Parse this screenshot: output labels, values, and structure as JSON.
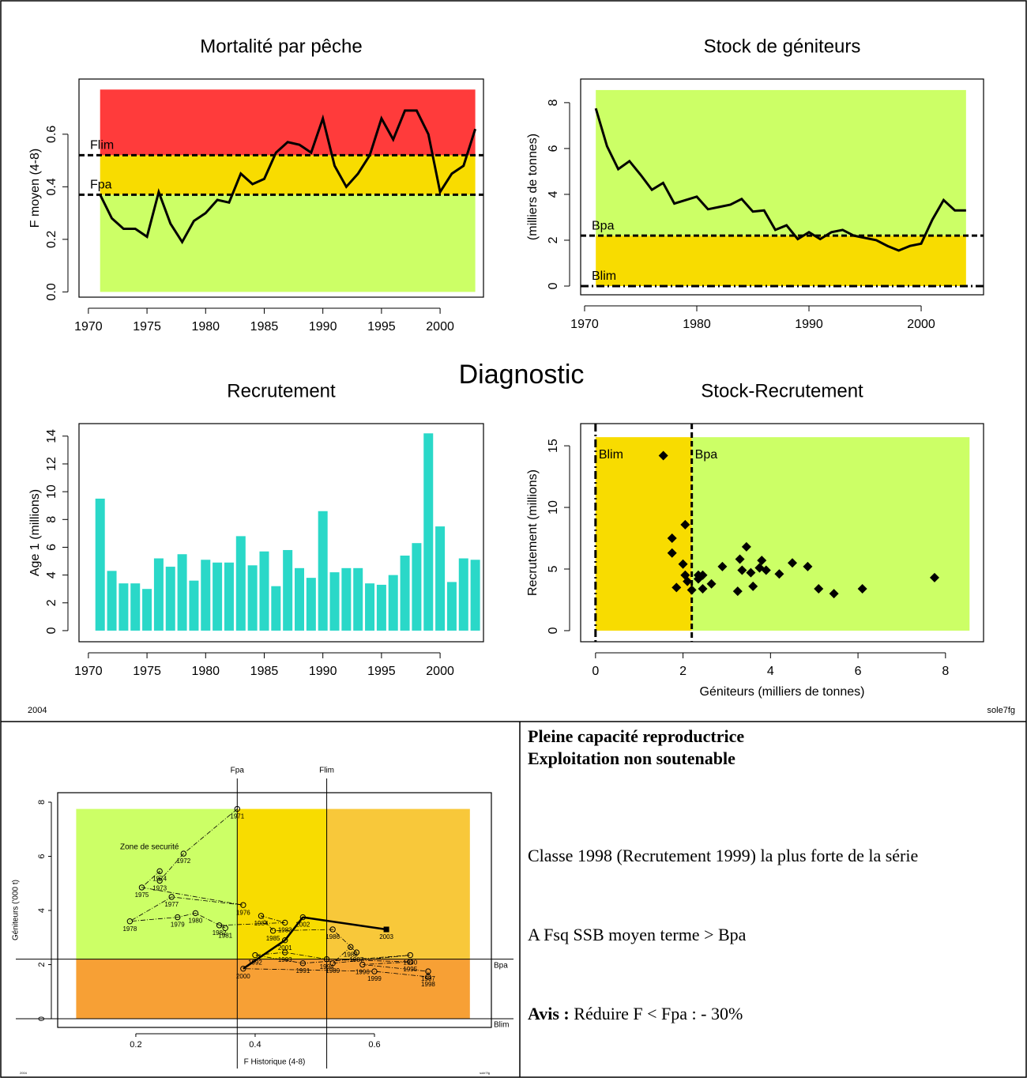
{
  "title": "Diagnostic",
  "footer_left": "2004",
  "footer_right": "sole7fg",
  "summary": {
    "lines": [
      "Pleine capacité reproductrice",
      "Exploitation non soutenable"
    ],
    "paragraphs": [
      "Classe 1998 (Recrutement 1999) la plus forte de la série",
      "A Fsq SSB moyen terme > Bpa"
    ],
    "advice_label": "Avis :",
    "advice": "Réduire F < Fpa : - 30%"
  },
  "chart_data": [
    {
      "type": "line",
      "title": "Mortalité par pêche",
      "ylabel": "F moyen (4-8)",
      "color": "#000000",
      "x": [
        1971,
        1972,
        1973,
        1974,
        1975,
        1976,
        1977,
        1978,
        1979,
        1980,
        1981,
        1982,
        1983,
        1984,
        1985,
        1986,
        1987,
        1988,
        1989,
        1990,
        1991,
        1992,
        1993,
        1994,
        1995,
        1996,
        1997,
        1998,
        1999,
        2000,
        2001,
        2002,
        2003
      ],
      "values": [
        0.37,
        0.28,
        0.24,
        0.24,
        0.21,
        0.38,
        0.26,
        0.19,
        0.27,
        0.3,
        0.35,
        0.34,
        0.45,
        0.41,
        0.43,
        0.53,
        0.57,
        0.56,
        0.53,
        0.66,
        0.48,
        0.4,
        0.45,
        0.52,
        0.66,
        0.58,
        0.69,
        0.69,
        0.6,
        0.38,
        0.45,
        0.48,
        0.62
      ],
      "xlim": [
        1969.2,
        2003.7
      ],
      "ylim": [
        -0.02,
        0.81
      ],
      "xticks": [
        1970,
        1975,
        1980,
        1985,
        1990,
        1995,
        2000
      ],
      "yticks": [
        {
          "value": 0,
          "label": "0.0"
        },
        0.2,
        0.4,
        0.6
      ],
      "zones": [
        {
          "color": "#ccff66",
          "xlim": [
            1971,
            2003
          ],
          "ylim": [
            0,
            0.37
          ]
        },
        {
          "color": "#f8dc00",
          "xlim": [
            1971,
            2003
          ],
          "ylim": [
            0.37,
            0.52
          ]
        },
        {
          "color": "#ff3b3b",
          "xlim": [
            1971,
            2003
          ],
          "ylim": [
            0.52,
            0.77
          ]
        }
      ],
      "ref_lines": [
        {
          "label": "Flim",
          "value": 0.52,
          "axis": "y",
          "style": "dashed"
        },
        {
          "label": "Fpa",
          "value": 0.37,
          "axis": "y",
          "style": "dashed"
        }
      ]
    },
    {
      "type": "line",
      "title": "Stock de géniteurs",
      "ylabel": "(milliers de tonnes)",
      "color": "#000000",
      "x": [
        1971,
        1972,
        1973,
        1974,
        1975,
        1976,
        1977,
        1978,
        1979,
        1980,
        1981,
        1982,
        1983,
        1984,
        1985,
        1986,
        1987,
        1988,
        1989,
        1990,
        1991,
        1992,
        1993,
        1994,
        1995,
        1996,
        1997,
        1998,
        1999,
        2000,
        2001,
        2002,
        2003,
        2004
      ],
      "values": [
        7.75,
        6.1,
        5.1,
        5.45,
        4.85,
        4.2,
        4.5,
        3.6,
        3.75,
        3.9,
        3.35,
        3.45,
        3.55,
        3.8,
        3.25,
        3.3,
        2.45,
        2.65,
        2.05,
        2.35,
        2.05,
        2.35,
        2.45,
        2.2,
        2.1,
        2.0,
        1.75,
        1.55,
        1.75,
        1.85,
        2.9,
        3.75,
        3.3,
        3.3
      ],
      "xlim": [
        1969.65,
        2005.56
      ],
      "ylim": [
        -0.38,
        9.03
      ],
      "xticks": [
        1970,
        1980,
        1990,
        2000
      ],
      "yticks": [
        0,
        2,
        4,
        6,
        8
      ],
      "zones": [
        {
          "color": "#ccff66",
          "xlim": [
            1971,
            2004
          ],
          "ylim": [
            2.2,
            8.55
          ]
        },
        {
          "color": "#f8dc00",
          "xlim": [
            1971,
            2004
          ],
          "ylim": [
            0,
            2.2
          ]
        }
      ],
      "ref_lines": [
        {
          "label": "Bpa",
          "value": 2.2,
          "axis": "y",
          "style": "dashed"
        },
        {
          "label": "Blim",
          "value": 0,
          "axis": "y",
          "style": "dotdash"
        }
      ]
    },
    {
      "type": "bar",
      "title": "Recrutement",
      "ylabel": "Age 1 (millions)",
      "color": "#2ad8c8",
      "x": [
        1971,
        1972,
        1973,
        1974,
        1975,
        1976,
        1977,
        1978,
        1979,
        1980,
        1981,
        1982,
        1983,
        1984,
        1985,
        1986,
        1987,
        1988,
        1989,
        1990,
        1991,
        1992,
        1993,
        1994,
        1995,
        1996,
        1997,
        1998,
        1999,
        2000,
        2001,
        2002,
        2003
      ],
      "values": [
        9.5,
        4.3,
        3.4,
        3.4,
        3.0,
        5.2,
        4.6,
        5.5,
        3.6,
        5.1,
        4.9,
        4.9,
        6.8,
        4.7,
        5.7,
        3.2,
        5.8,
        4.5,
        3.8,
        8.6,
        4.2,
        4.5,
        4.5,
        3.4,
        3.3,
        4.0,
        5.4,
        6.3,
        14.2,
        7.5,
        3.5,
        5.2,
        5.1
      ],
      "xlim": [
        1969.2,
        2003.7
      ],
      "ylim": [
        -0.8,
        14.9
      ],
      "xticks": [
        1970,
        1975,
        1980,
        1985,
        1990,
        1995,
        2000
      ],
      "yticks": [
        0,
        2,
        4,
        6,
        8,
        10,
        12,
        14
      ]
    },
    {
      "type": "scatter",
      "title": "Stock-Recrutement",
      "xlabel": "Géniteurs (milliers de tonnes)",
      "ylabel": "Recrutement (millions)",
      "color": "#000000",
      "x": [
        7.75,
        6.1,
        5.1,
        5.45,
        4.85,
        4.2,
        4.5,
        3.6,
        3.75,
        3.9,
        3.35,
        3.45,
        3.55,
        3.8,
        3.25,
        3.3,
        2.45,
        2.65,
        2.05,
        2.35,
        2.05,
        2.35,
        2.45,
        2.2,
        2.1,
        2.0,
        1.75,
        1.55,
        1.75,
        1.85,
        2.9,
        3.75
      ],
      "values": [
        4.3,
        3.4,
        3.4,
        3.0,
        5.2,
        4.6,
        5.5,
        3.6,
        5.1,
        4.9,
        4.9,
        6.8,
        4.7,
        5.7,
        3.2,
        5.8,
        4.5,
        3.8,
        8.6,
        4.2,
        4.5,
        4.5,
        3.4,
        3.3,
        4.0,
        5.4,
        6.3,
        14.2,
        7.5,
        3.5,
        5.2,
        5.1
      ],
      "xlim": [
        -0.34,
        8.87
      ],
      "ylim": [
        -0.9,
        16.8
      ],
      "xticks": [
        0,
        2,
        4,
        6,
        8
      ],
      "yticks": [
        0,
        5,
        10,
        15
      ],
      "zones": [
        {
          "color": "#f8dc00",
          "xlim": [
            0,
            2.2
          ],
          "ylim": [
            0,
            15.7
          ]
        },
        {
          "color": "#ccff66",
          "xlim": [
            2.2,
            8.55
          ],
          "ylim": [
            0,
            15.7
          ]
        }
      ],
      "ref_lines": [
        {
          "label": "Blim",
          "value": 0,
          "axis": "x",
          "style": "dotdash"
        },
        {
          "label": "Bpa",
          "value": 2.2,
          "axis": "x",
          "style": "dashed"
        }
      ]
    },
    {
      "type": "trajectory",
      "xlabel": "F Historique (4-8)",
      "ylabel": "Géniteurs ('000 t)",
      "color": "#000000",
      "annotation": "Zone de securité",
      "footer_left": "2004",
      "footer_right": "sole7fg",
      "x": [
        0.37,
        0.28,
        0.24,
        0.24,
        0.21,
        0.38,
        0.26,
        0.19,
        0.27,
        0.3,
        0.35,
        0.34,
        0.45,
        0.41,
        0.43,
        0.53,
        0.57,
        0.56,
        0.53,
        0.66,
        0.48,
        0.4,
        0.45,
        0.52,
        0.66,
        0.58,
        0.69,
        0.69,
        0.6,
        0.38,
        0.45,
        0.48,
        0.62
      ],
      "values": [
        7.75,
        6.1,
        5.1,
        5.45,
        4.85,
        4.2,
        4.5,
        3.6,
        3.75,
        3.9,
        3.35,
        3.45,
        3.55,
        3.8,
        3.25,
        3.3,
        2.45,
        2.65,
        2.05,
        2.35,
        2.05,
        2.35,
        2.45,
        2.2,
        2.1,
        2.0,
        1.75,
        1.55,
        1.75,
        1.85,
        2.9,
        3.75,
        3.3
      ],
      "point_labels": [
        "1971",
        "1972",
        "1973",
        "1974",
        "1975",
        "1976",
        "1977",
        "1978",
        "1979",
        "1980",
        "1981",
        "1982",
        "1983",
        "1984",
        "1985",
        "1986",
        "1987",
        "1988",
        "1989",
        "1990",
        "1991",
        "1992",
        "1993",
        "1994",
        "1995",
        "1996",
        "1997",
        "1998",
        "1999",
        "2000",
        "2001",
        "2002",
        "2003"
      ],
      "xlim": [
        0.069,
        0.796
      ],
      "ylim": [
        -0.32,
        8.35
      ],
      "xticks": [
        0.2,
        0.4,
        0.6
      ],
      "yticks": [
        0,
        2,
        4,
        6,
        8
      ],
      "zones": [
        {
          "color": "#ccff66",
          "xlim": [
            0.1,
            0.37
          ],
          "ylim": [
            2.2,
            7.75
          ]
        },
        {
          "color": "#f8dc00",
          "xlim": [
            0.37,
            0.52
          ],
          "ylim": [
            2.2,
            7.75
          ]
        },
        {
          "color": "#f8c83a",
          "xlim": [
            0.52,
            0.76
          ],
          "ylim": [
            2.2,
            7.75
          ]
        },
        {
          "color": "#f7a035",
          "xlim": [
            0.1,
            0.76
          ],
          "ylim": [
            0,
            2.2
          ]
        }
      ],
      "ref_lines": [
        {
          "label": "Fpa",
          "value": 0.37,
          "axis": "x",
          "style": "solid"
        },
        {
          "label": "Flim",
          "value": 0.52,
          "axis": "x",
          "style": "solid"
        },
        {
          "label": "Bpa",
          "value": 2.2,
          "axis": "y",
          "style": "solid"
        },
        {
          "label": "Blim",
          "value": 0,
          "axis": "y",
          "style": "solid"
        }
      ]
    }
  ]
}
